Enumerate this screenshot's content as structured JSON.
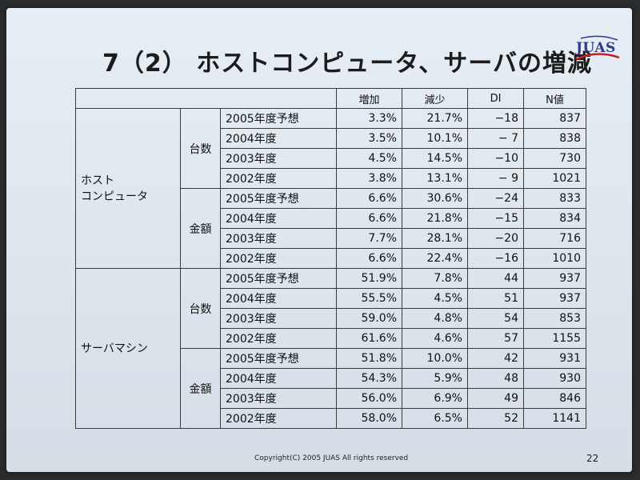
{
  "slide": {
    "title": "7（2） ホストコンピュータ、サーバの増減",
    "logo_text": "JUAS",
    "footer": "Copyright(C) 2005 JUAS All rights reserved",
    "page_number": "22"
  },
  "table": {
    "headers": [
      "増加",
      "減少",
      "DI",
      "N値"
    ],
    "categories": [
      {
        "name_line1": "ホスト",
        "name_line2": "コンピュータ",
        "groups": [
          {
            "name": "台数",
            "rows": [
              {
                "year": "2005年度予想",
                "inc": "3.3%",
                "dec": "21.7%",
                "di": "−18",
                "n": "837"
              },
              {
                "year": "2004年度",
                "inc": "3.5%",
                "dec": "10.1%",
                "di": "− 7",
                "n": "838"
              },
              {
                "year": "2003年度",
                "inc": "4.5%",
                "dec": "14.5%",
                "di": "−10",
                "n": "730"
              },
              {
                "year": "2002年度",
                "inc": "3.8%",
                "dec": "13.1%",
                "di": "− 9",
                "n": "1021"
              }
            ]
          },
          {
            "name": "金額",
            "rows": [
              {
                "year": "2005年度予想",
                "inc": "6.6%",
                "dec": "30.6%",
                "di": "−24",
                "n": "833"
              },
              {
                "year": "2004年度",
                "inc": "6.6%",
                "dec": "21.8%",
                "di": "−15",
                "n": "834"
              },
              {
                "year": "2003年度",
                "inc": "7.7%",
                "dec": "28.1%",
                "di": "−20",
                "n": "716"
              },
              {
                "year": "2002年度",
                "inc": "6.6%",
                "dec": "22.4%",
                "di": "−16",
                "n": "1010"
              }
            ]
          }
        ]
      },
      {
        "name_line1": "サーバマシン",
        "name_line2": "",
        "groups": [
          {
            "name": "台数",
            "rows": [
              {
                "year": "2005年度予想",
                "inc": "51.9%",
                "dec": "7.8%",
                "di": "44",
                "n": "937"
              },
              {
                "year": "2004年度",
                "inc": "55.5%",
                "dec": "4.5%",
                "di": "51",
                "n": "937"
              },
              {
                "year": "2003年度",
                "inc": "59.0%",
                "dec": "4.8%",
                "di": "54",
                "n": "853"
              },
              {
                "year": "2002年度",
                "inc": "61.6%",
                "dec": "4.6%",
                "di": "57",
                "n": "1155"
              }
            ]
          },
          {
            "name": "金額",
            "rows": [
              {
                "year": "2005年度予想",
                "inc": "51.8%",
                "dec": "10.0%",
                "di": "42",
                "n": "931"
              },
              {
                "year": "2004年度",
                "inc": "54.3%",
                "dec": "5.9%",
                "di": "48",
                "n": "930"
              },
              {
                "year": "2003年度",
                "inc": "56.0%",
                "dec": "6.9%",
                "di": "49",
                "n": "846"
              },
              {
                "year": "2002年度",
                "inc": "58.0%",
                "dec": "6.5%",
                "di": "52",
                "n": "1141"
              }
            ]
          }
        ]
      }
    ]
  }
}
